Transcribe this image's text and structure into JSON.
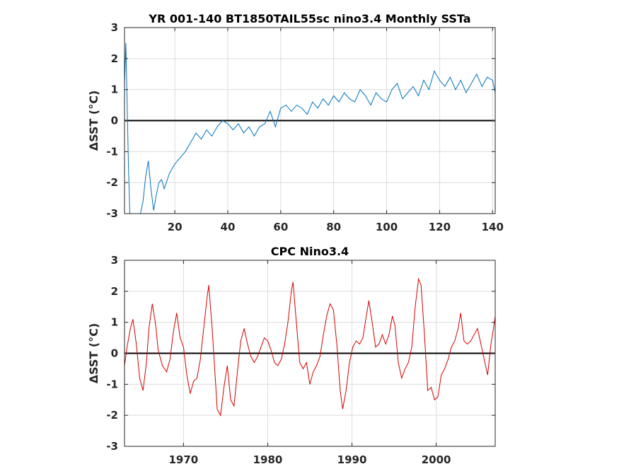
{
  "chart_data": [
    {
      "type": "line",
      "title": "YR 001-140 BT1850TAIL55sc nino3.4 Monthly SSTa",
      "ylabel": "ΔSST (°C)",
      "xlim": [
        1,
        141
      ],
      "ylim": [
        -3,
        3
      ],
      "xticks": [
        20,
        40,
        60,
        80,
        100,
        120,
        140
      ],
      "yticks": [
        -3,
        -2,
        -1,
        0,
        1,
        2,
        3
      ],
      "grid": true,
      "zero_line": true,
      "series": [
        {
          "color": "#0072bd",
          "x": [
            1,
            1.5,
            2,
            2.5,
            3,
            4,
            5,
            6,
            7,
            8,
            9,
            10,
            11,
            12,
            13,
            14,
            15,
            16,
            18,
            20,
            22,
            24,
            26,
            28,
            30,
            32,
            34,
            36,
            38,
            40,
            42,
            44,
            46,
            48,
            50,
            52,
            54,
            56,
            58,
            60,
            62,
            64,
            66,
            68,
            70,
            72,
            74,
            76,
            78,
            80,
            82,
            84,
            86,
            88,
            90,
            92,
            94,
            96,
            98,
            100,
            102,
            104,
            106,
            108,
            110,
            112,
            114,
            116,
            118,
            120,
            122,
            124,
            126,
            128,
            130,
            132,
            134,
            136,
            138,
            140,
            141
          ],
          "y": [
            1.2,
            2.5,
            0.6,
            -1.5,
            -3,
            -3,
            -3,
            -3,
            -3,
            -2.6,
            -1.8,
            -1.3,
            -2.2,
            -2.9,
            -2.4,
            -2.0,
            -1.9,
            -2.2,
            -1.7,
            -1.4,
            -1.2,
            -1.0,
            -0.7,
            -0.4,
            -0.6,
            -0.3,
            -0.5,
            -0.2,
            0.0,
            -0.1,
            -0.3,
            -0.1,
            -0.4,
            -0.2,
            -0.5,
            -0.2,
            -0.1,
            0.3,
            -0.2,
            0.4,
            0.5,
            0.3,
            0.5,
            0.4,
            0.2,
            0.6,
            0.4,
            0.7,
            0.5,
            0.8,
            0.6,
            0.9,
            0.7,
            0.6,
            1.0,
            0.8,
            0.5,
            0.9,
            0.7,
            0.6,
            1.0,
            1.2,
            0.7,
            0.9,
            1.1,
            0.8,
            1.3,
            1.0,
            1.6,
            1.3,
            1.1,
            1.4,
            1.0,
            1.3,
            0.9,
            1.2,
            1.5,
            1.1,
            1.4,
            1.3,
            0.9
          ]
        }
      ]
    },
    {
      "type": "line",
      "title": "CPC Nino3.4",
      "ylabel": "ΔSST (°C)",
      "xlim": [
        1963,
        2007
      ],
      "ylim": [
        -3,
        3
      ],
      "xticks": [
        1970,
        1980,
        1990,
        2000
      ],
      "yticks": [
        -3,
        -2,
        -1,
        0,
        1,
        2,
        3
      ],
      "grid": true,
      "zero_line": true,
      "series": [
        {
          "color": "#d40000",
          "x": [
            1963.0,
            1963.3,
            1963.7,
            1964.0,
            1964.4,
            1964.8,
            1965.2,
            1965.6,
            1965.9,
            1966.3,
            1966.7,
            1967.0,
            1967.5,
            1968.0,
            1968.4,
            1968.8,
            1969.2,
            1969.6,
            1970.0,
            1970.4,
            1970.8,
            1971.2,
            1971.6,
            1972.0,
            1972.4,
            1972.8,
            1973.0,
            1973.4,
            1973.8,
            1974.0,
            1974.4,
            1974.8,
            1975.2,
            1975.6,
            1976.0,
            1976.4,
            1976.8,
            1977.2,
            1977.6,
            1978.0,
            1978.4,
            1978.8,
            1979.2,
            1979.6,
            1980.0,
            1980.4,
            1980.8,
            1981.2,
            1981.6,
            1982.0,
            1982.4,
            1982.8,
            1983.0,
            1983.4,
            1983.8,
            1984.2,
            1984.6,
            1985.0,
            1985.4,
            1985.8,
            1986.2,
            1986.6,
            1987.0,
            1987.4,
            1987.8,
            1988.2,
            1988.6,
            1988.9,
            1989.3,
            1989.7,
            1990.1,
            1990.5,
            1990.9,
            1991.3,
            1991.7,
            1992.0,
            1992.4,
            1992.8,
            1993.2,
            1993.6,
            1994.0,
            1994.4,
            1994.8,
            1995.1,
            1995.5,
            1995.9,
            1996.3,
            1996.7,
            1997.1,
            1997.5,
            1997.9,
            1998.2,
            1998.6,
            1999.0,
            1999.4,
            1999.8,
            2000.2,
            2000.6,
            2001.0,
            2001.4,
            2001.8,
            2002.2,
            2002.6,
            2002.9,
            2003.3,
            2003.7,
            2004.1,
            2004.5,
            2004.9,
            2005.3,
            2005.7,
            2006.1,
            2006.5,
            2006.8,
            2007.0
          ],
          "y": [
            -0.4,
            0.2,
            0.8,
            1.1,
            0.3,
            -0.8,
            -1.2,
            -0.3,
            0.8,
            1.6,
            0.9,
            0.1,
            -0.4,
            -0.6,
            -0.2,
            0.7,
            1.3,
            0.5,
            0.2,
            -0.7,
            -1.3,
            -0.9,
            -0.8,
            -0.2,
            0.8,
            1.8,
            2.2,
            0.8,
            -0.9,
            -1.8,
            -2.0,
            -1.1,
            -0.4,
            -1.5,
            -1.7,
            -0.6,
            0.4,
            0.8,
            0.3,
            -0.1,
            -0.3,
            -0.1,
            0.2,
            0.5,
            0.4,
            0.1,
            -0.3,
            -0.4,
            -0.2,
            0.3,
            1.0,
            2.0,
            2.3,
            1.0,
            -0.3,
            -0.5,
            -0.3,
            -1.0,
            -0.6,
            -0.4,
            -0.1,
            0.6,
            1.2,
            1.6,
            1.4,
            0.3,
            -1.2,
            -1.8,
            -1.2,
            -0.3,
            0.2,
            0.4,
            0.3,
            0.5,
            1.2,
            1.7,
            1.0,
            0.2,
            0.3,
            0.6,
            0.3,
            0.6,
            1.2,
            0.9,
            -0.3,
            -0.8,
            -0.5,
            -0.3,
            0.2,
            1.5,
            2.4,
            2.2,
            0.6,
            -1.2,
            -1.1,
            -1.5,
            -1.4,
            -0.7,
            -0.5,
            -0.2,
            0.2,
            0.4,
            0.8,
            1.3,
            0.4,
            0.3,
            0.4,
            0.6,
            0.8,
            0.3,
            -0.2,
            -0.7,
            0.3,
            0.8,
            1.2
          ]
        }
      ]
    }
  ]
}
